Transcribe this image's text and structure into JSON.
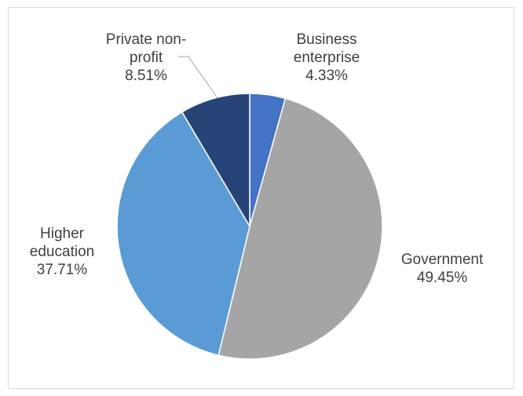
{
  "chart_data": {
    "type": "pie",
    "title": "",
    "start_angle_deg": 0,
    "direction": "clockwise",
    "legend": "none",
    "slices": [
      {
        "label_lines": [
          "Business",
          "enterprise"
        ],
        "value": 4.33,
        "value_label": "4.33%",
        "color": "#4472c4"
      },
      {
        "label_lines": [
          "Government"
        ],
        "value": 49.45,
        "value_label": "49.45%",
        "color": "#a5a5a5"
      },
      {
        "label_lines": [
          "Higher",
          "education"
        ],
        "value": 37.71,
        "value_label": "37.71%",
        "color": "#5b9bd5"
      },
      {
        "label_lines": [
          "Private non-",
          "profit"
        ],
        "value": 8.51,
        "value_label": "8.51%",
        "color": "#264478"
      }
    ]
  }
}
